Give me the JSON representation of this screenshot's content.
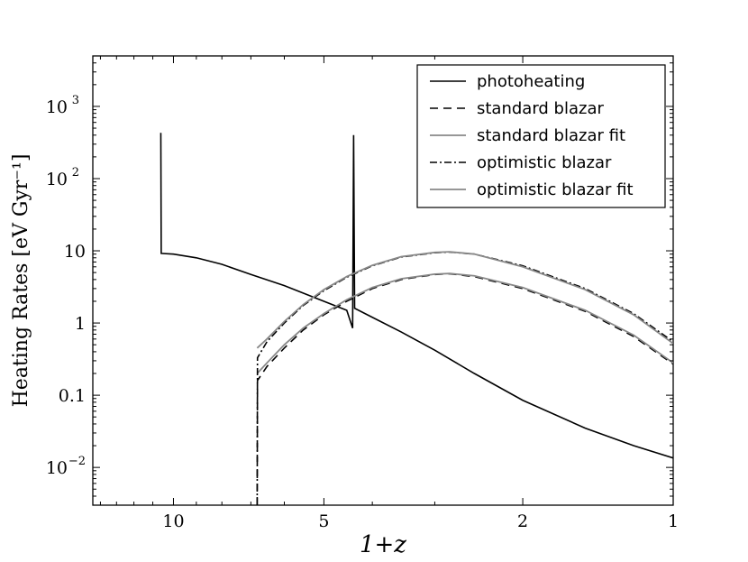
{
  "chart_data": {
    "type": "line",
    "xlabel": "1+z",
    "ylabel": "Heating Rates [eV Gyr⁻¹]",
    "x_scale": "log",
    "x_reversed": true,
    "y_scale": "log",
    "xlim": [
      14.5,
      1
    ],
    "ylim": [
      0.003,
      5000
    ],
    "x_ticks": [
      {
        "value": 10,
        "label": "10"
      },
      {
        "value": 5,
        "label": "5"
      },
      {
        "value": 2,
        "label": "2"
      },
      {
        "value": 1,
        "label": "1"
      }
    ],
    "y_ticks": [
      {
        "value": 0.01,
        "label": "10",
        "exp": "−2"
      },
      {
        "value": 0.1,
        "label": "0.1",
        "exp": ""
      },
      {
        "value": 1,
        "label": "1",
        "exp": ""
      },
      {
        "value": 10,
        "label": "10",
        "exp": ""
      },
      {
        "value": 100,
        "label": "10",
        "exp": "2"
      },
      {
        "value": 1000,
        "label": "10",
        "exp": "3"
      }
    ],
    "legend_position": "top-right",
    "series": [
      {
        "name": "photoheating",
        "color": "#000000",
        "dash": "",
        "points": [
          [
            10.6,
            430
          ],
          [
            10.58,
            9.2
          ],
          [
            10.0,
            9.0
          ],
          [
            9.0,
            8.0
          ],
          [
            8.0,
            6.5
          ],
          [
            7.0,
            4.7
          ],
          [
            6.0,
            3.3
          ],
          [
            5.0,
            2.0
          ],
          [
            4.5,
            1.5
          ],
          [
            4.38,
            0.85
          ],
          [
            4.36,
            400
          ],
          [
            4.34,
            1.6
          ],
          [
            4.0,
            1.2
          ],
          [
            3.5,
            0.75
          ],
          [
            3.0,
            0.42
          ],
          [
            2.5,
            0.2
          ],
          [
            2.0,
            0.085
          ],
          [
            1.5,
            0.035
          ],
          [
            1.2,
            0.02
          ],
          [
            1.0,
            0.0135
          ]
        ]
      },
      {
        "name": "standard blazar",
        "color": "#000000",
        "dash": "9,6",
        "points": [
          [
            6.8,
            0.003
          ],
          [
            6.79,
            0.16
          ],
          [
            6.5,
            0.25
          ],
          [
            6.0,
            0.45
          ],
          [
            5.5,
            0.8
          ],
          [
            5.0,
            1.3
          ],
          [
            4.5,
            2.0
          ],
          [
            4.0,
            3.0
          ],
          [
            3.5,
            4.0
          ],
          [
            3.0,
            4.7
          ],
          [
            2.8,
            4.8
          ],
          [
            2.5,
            4.4
          ],
          [
            2.0,
            3.0
          ],
          [
            1.5,
            1.45
          ],
          [
            1.2,
            0.65
          ],
          [
            1.0,
            0.27
          ]
        ]
      },
      {
        "name": "standard blazar fit",
        "color": "#888888",
        "dash": "",
        "points": [
          [
            6.8,
            0.2
          ],
          [
            6.5,
            0.28
          ],
          [
            6.0,
            0.5
          ],
          [
            5.5,
            0.85
          ],
          [
            5.0,
            1.35
          ],
          [
            4.5,
            2.1
          ],
          [
            4.0,
            3.1
          ],
          [
            3.5,
            4.1
          ],
          [
            3.0,
            4.75
          ],
          [
            2.8,
            4.85
          ],
          [
            2.5,
            4.5
          ],
          [
            2.0,
            3.1
          ],
          [
            1.5,
            1.5
          ],
          [
            1.2,
            0.68
          ],
          [
            1.0,
            0.28
          ]
        ]
      },
      {
        "name": "optimistic blazar",
        "color": "#000000",
        "dash": "8,3,2,3",
        "points": [
          [
            6.8,
            0.003
          ],
          [
            6.79,
            0.33
          ],
          [
            6.5,
            0.55
          ],
          [
            6.0,
            1.0
          ],
          [
            5.5,
            1.75
          ],
          [
            5.0,
            2.8
          ],
          [
            4.5,
            4.3
          ],
          [
            4.0,
            6.2
          ],
          [
            3.5,
            8.2
          ],
          [
            3.0,
            9.4
          ],
          [
            2.8,
            9.6
          ],
          [
            2.5,
            9.0
          ],
          [
            2.0,
            6.2
          ],
          [
            1.5,
            3.0
          ],
          [
            1.2,
            1.35
          ],
          [
            1.0,
            0.55
          ]
        ]
      },
      {
        "name": "optimistic blazar fit",
        "color": "#888888",
        "dash": "",
        "points": [
          [
            6.8,
            0.45
          ],
          [
            6.5,
            0.6
          ],
          [
            6.0,
            1.05
          ],
          [
            5.5,
            1.8
          ],
          [
            5.0,
            2.9
          ],
          [
            4.5,
            4.4
          ],
          [
            4.0,
            6.3
          ],
          [
            3.5,
            8.3
          ],
          [
            3.0,
            9.5
          ],
          [
            2.8,
            9.7
          ],
          [
            2.5,
            9.0
          ],
          [
            2.0,
            6.0
          ],
          [
            1.5,
            2.9
          ],
          [
            1.2,
            1.3
          ],
          [
            1.0,
            0.52
          ]
        ]
      }
    ]
  }
}
